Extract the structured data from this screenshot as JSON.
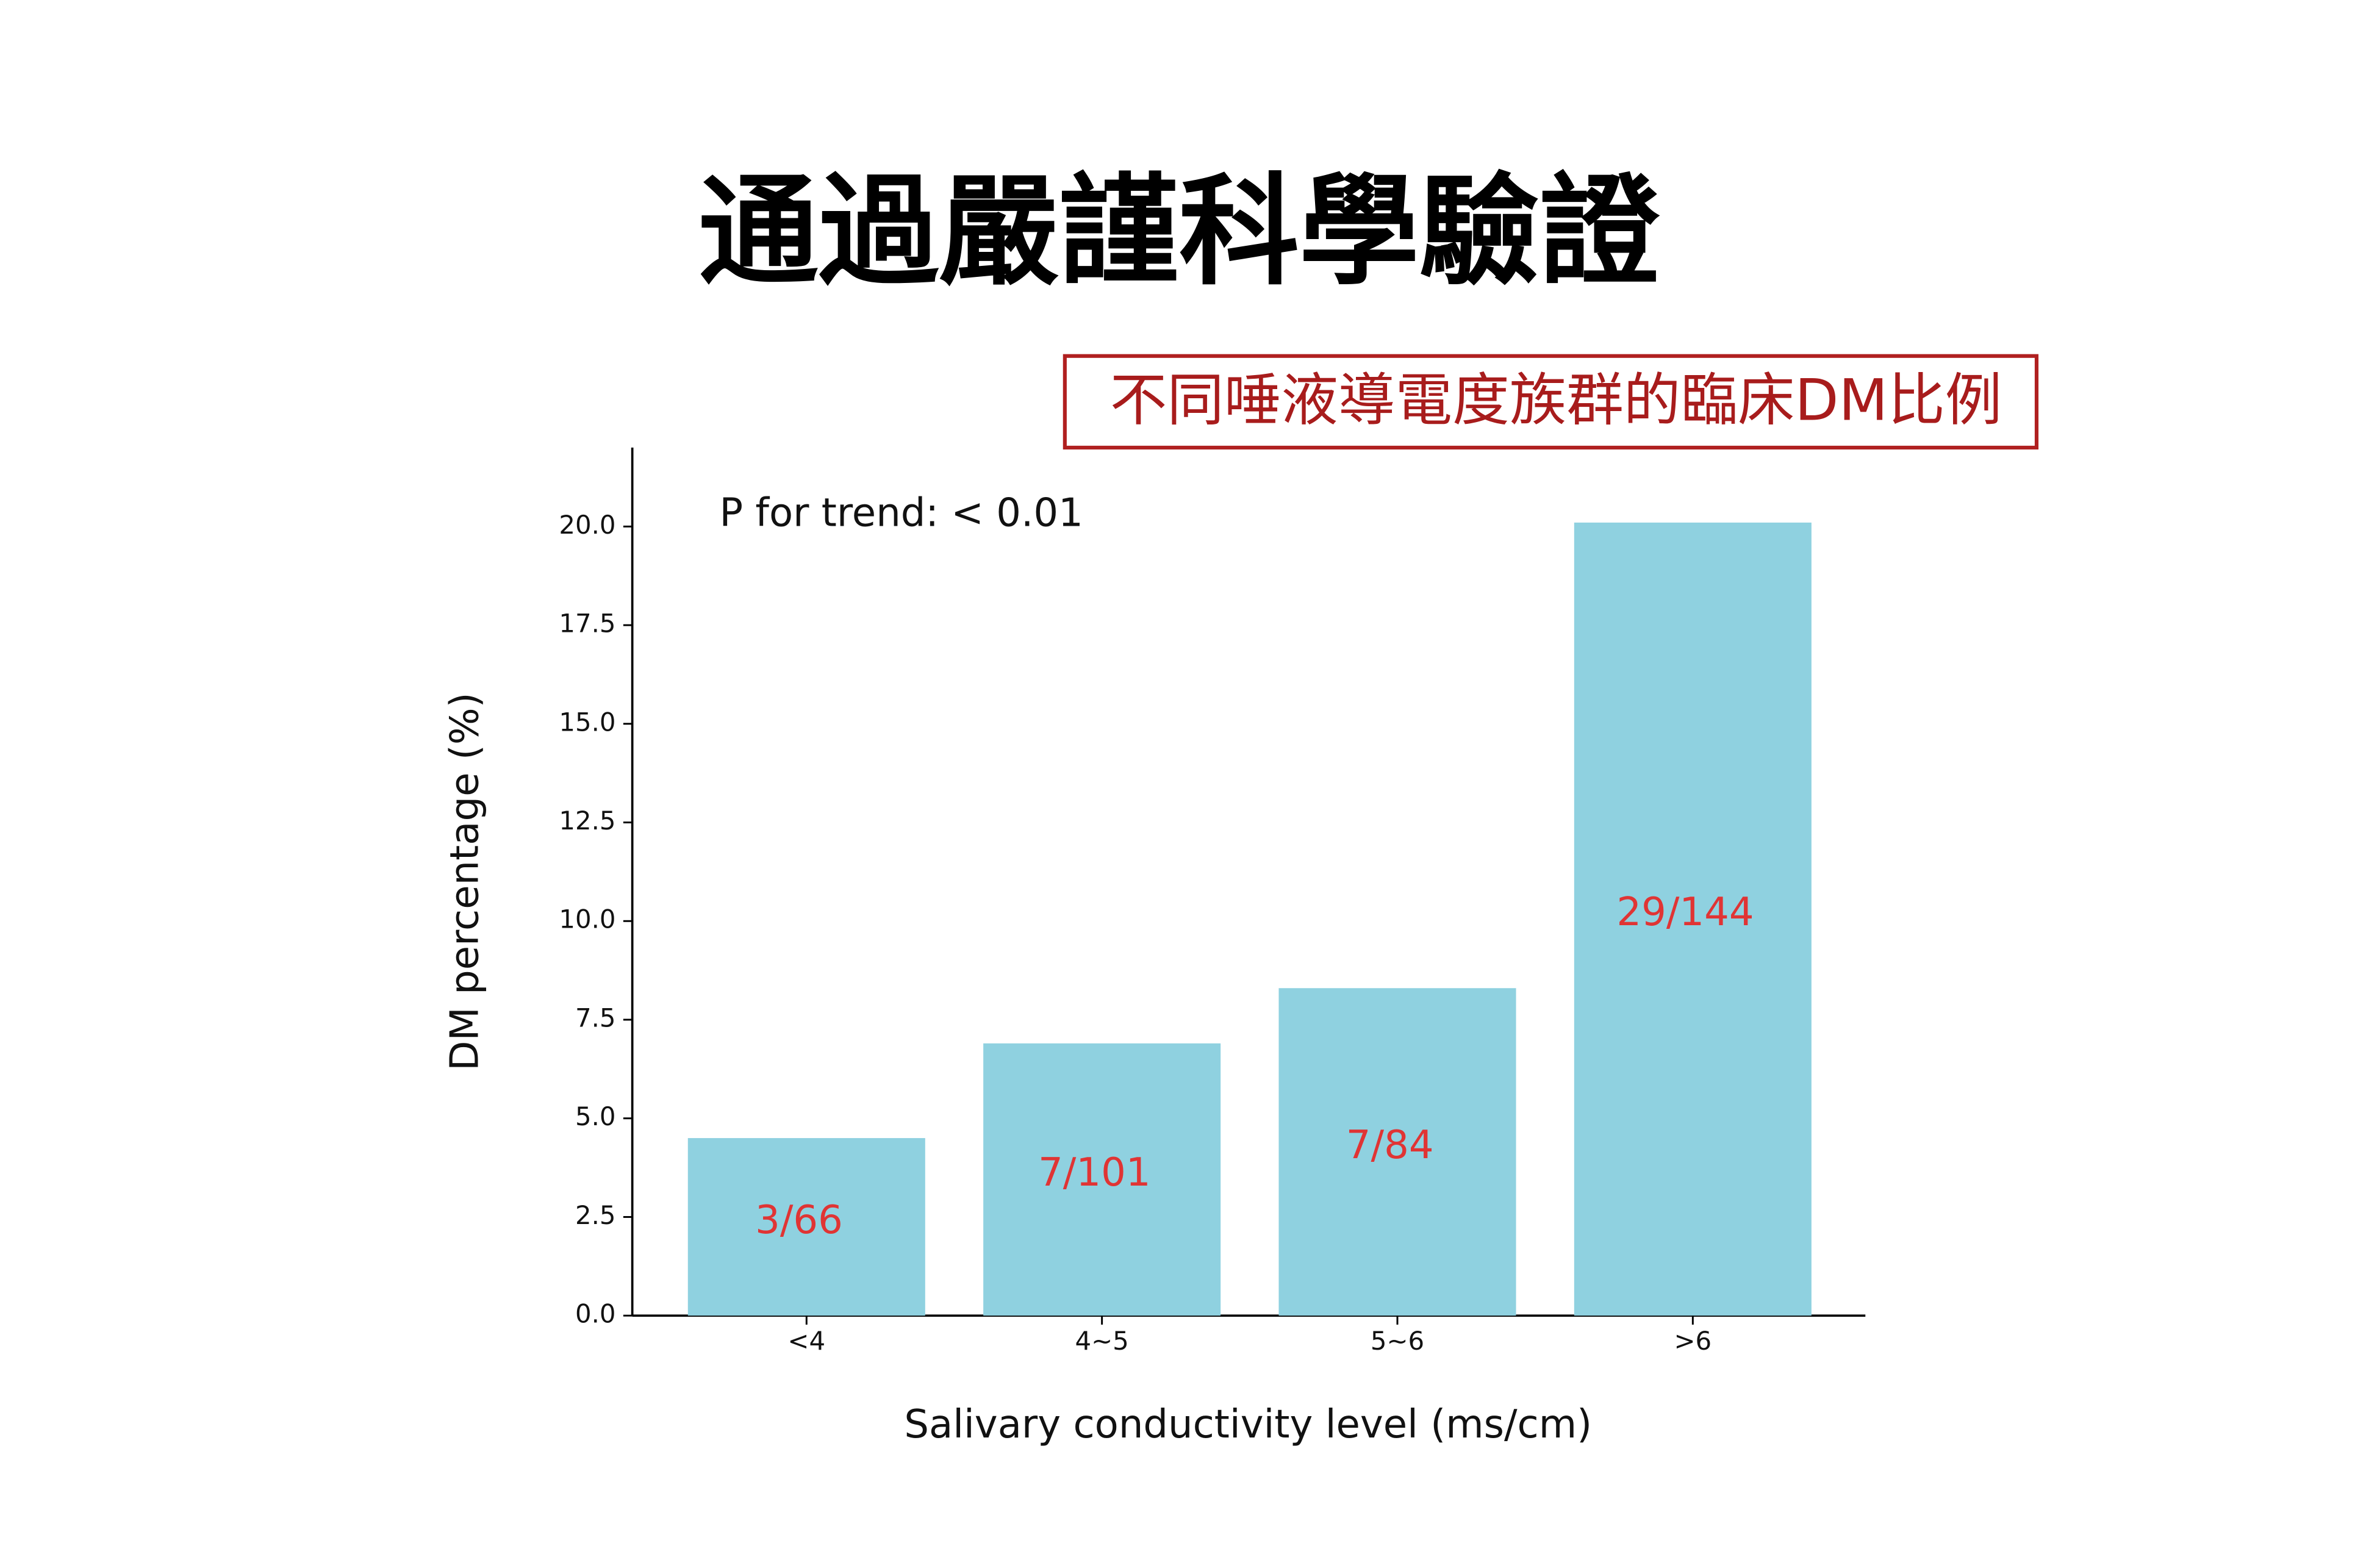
{
  "chart_data": {
    "type": "bar",
    "title": "通過嚴謹科學驗證",
    "subtitle": "不同唾液導電度族群的臨床DM比例",
    "annotation": "P for trend: < 0.01",
    "x_label": "Salivary conductivity level (ms/cm)",
    "y_label": "DM percentage (%)",
    "categories": [
      "<4",
      "4~5",
      "5~6",
      ">6"
    ],
    "values": [
      4.5,
      6.9,
      8.3,
      20.1
    ],
    "bar_annotations": [
      "3/66",
      "7/101",
      "7/84",
      "29/144"
    ],
    "color": "#8fd1e0",
    "ylim": [
      0,
      22
    ],
    "yticks": [
      {
        "value": 0,
        "label": "0.0"
      },
      2.5,
      {
        "value": 5,
        "label": "5.0"
      },
      7.5,
      {
        "value": 10,
        "label": "10.0"
      },
      12.5,
      {
        "value": 15,
        "label": "15.0"
      },
      17.5,
      {
        "value": 20,
        "label": "20.0"
      }
    ]
  }
}
